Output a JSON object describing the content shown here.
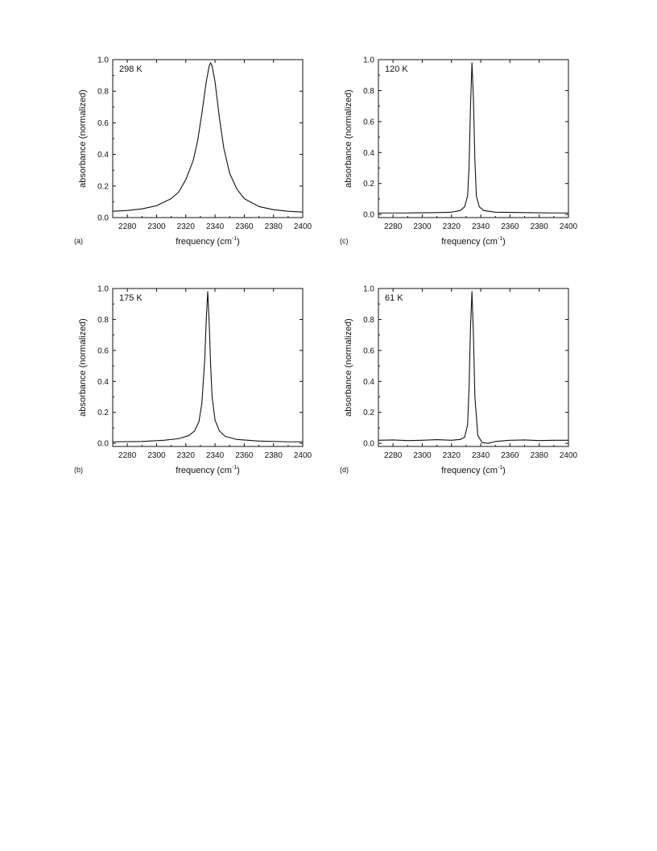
{
  "figure": {
    "panels": [
      {
        "id": "a",
        "panel_label": "(a)",
        "temperature_label": "298 K"
      },
      {
        "id": "c",
        "panel_label": "(c)",
        "temperature_label": "120 K"
      },
      {
        "id": "b",
        "panel_label": "(b)",
        "temperature_label": "175 K"
      },
      {
        "id": "d",
        "panel_label": "(d)",
        "temperature_label": "61 K"
      }
    ]
  },
  "chart_data": [
    {
      "type": "line",
      "panel": "(a)",
      "annotation": "298 K",
      "xlabel": "frequency (cm",
      "xlabel_superscript": "-1",
      "xlabel_suffix": ")",
      "ylabel": "absorbance (normalized)",
      "xlim": [
        2270,
        2400
      ],
      "ylim": [
        0,
        1.0
      ],
      "x_ticks": [
        "2280",
        "2300",
        "2320",
        "2340",
        "2360",
        "2380",
        "2400"
      ],
      "y_ticks": [
        "0.0",
        "0.2",
        "0.4",
        "0.6",
        "0.8",
        "1.0"
      ],
      "series": [
        {
          "x": [
            2270,
            2280,
            2290,
            2300,
            2310,
            2315,
            2320,
            2325,
            2328,
            2331,
            2334,
            2336,
            2337,
            2338,
            2340,
            2343,
            2346,
            2350,
            2355,
            2360,
            2370,
            2380,
            2390,
            2400
          ],
          "values": [
            0.04,
            0.045,
            0.055,
            0.075,
            0.12,
            0.16,
            0.24,
            0.36,
            0.48,
            0.66,
            0.86,
            0.96,
            0.98,
            0.96,
            0.86,
            0.63,
            0.44,
            0.28,
            0.18,
            0.12,
            0.07,
            0.05,
            0.04,
            0.035
          ]
        }
      ]
    },
    {
      "type": "line",
      "panel": "(c)",
      "annotation": "120 K",
      "xlabel": "frequency (cm",
      "xlabel_superscript": "-1",
      "xlabel_suffix": ")",
      "ylabel": "absorbance (normalized)",
      "xlim": [
        2270,
        2400
      ],
      "ylim": [
        -0.02,
        1.0
      ],
      "x_ticks": [
        "2280",
        "2300",
        "2320",
        "2340",
        "2360",
        "2380",
        "2400"
      ],
      "y_ticks": [
        "0.0",
        "0.2",
        "0.4",
        "0.6",
        "0.8",
        "1.0"
      ],
      "series": [
        {
          "x": [
            2270,
            2290,
            2310,
            2320,
            2326,
            2329,
            2331,
            2332,
            2333,
            2334,
            2335,
            2336,
            2337,
            2339,
            2342,
            2350,
            2370,
            2390,
            2400
          ],
          "values": [
            0.01,
            0.01,
            0.012,
            0.015,
            0.025,
            0.05,
            0.12,
            0.3,
            0.7,
            0.98,
            0.75,
            0.35,
            0.12,
            0.05,
            0.025,
            0.015,
            0.012,
            0.01,
            0.01
          ]
        }
      ]
    },
    {
      "type": "line",
      "panel": "(b)",
      "annotation": "175 K",
      "xlabel": "frequency (cm",
      "xlabel_superscript": "-1",
      "xlabel_suffix": ")",
      "ylabel": "absorbance (normalized)",
      "xlim": [
        2270,
        2400
      ],
      "ylim": [
        -0.02,
        1.0
      ],
      "x_ticks": [
        "2280",
        "2300",
        "2320",
        "2340",
        "2360",
        "2380",
        "2400"
      ],
      "y_ticks": [
        "0.0",
        "0.2",
        "0.4",
        "0.6",
        "0.8",
        "1.0"
      ],
      "series": [
        {
          "x": [
            2270,
            2290,
            2305,
            2315,
            2322,
            2326,
            2329,
            2331,
            2333,
            2334,
            2335,
            2336,
            2337,
            2338,
            2340,
            2343,
            2347,
            2355,
            2370,
            2390,
            2400
          ],
          "values": [
            0.01,
            0.012,
            0.02,
            0.03,
            0.05,
            0.08,
            0.14,
            0.26,
            0.55,
            0.8,
            0.98,
            0.78,
            0.5,
            0.3,
            0.15,
            0.08,
            0.045,
            0.025,
            0.015,
            0.01,
            0.01
          ]
        }
      ]
    },
    {
      "type": "line",
      "panel": "(d)",
      "annotation": "61 K",
      "xlabel": "frequency (cm",
      "xlabel_superscript": "-1",
      "xlabel_suffix": ")",
      "ylabel": "absorbance (normalized)",
      "xlim": [
        2270,
        2400
      ],
      "ylim": [
        -0.02,
        1.0
      ],
      "x_ticks": [
        "2280",
        "2300",
        "2320",
        "2340",
        "2360",
        "2380",
        "2400"
      ],
      "y_ticks": [
        "0.0",
        "0.2",
        "0.4",
        "0.6",
        "0.8",
        "1.0"
      ],
      "series": [
        {
          "x": [
            2270,
            2280,
            2290,
            2300,
            2310,
            2320,
            2326,
            2329,
            2331,
            2332,
            2333,
            2334,
            2335,
            2336,
            2338,
            2341,
            2345,
            2350,
            2360,
            2370,
            2380,
            2390,
            2400
          ],
          "values": [
            0.02,
            0.022,
            0.018,
            0.02,
            0.024,
            0.02,
            0.025,
            0.04,
            0.12,
            0.35,
            0.75,
            0.98,
            0.7,
            0.3,
            0.05,
            0.005,
            0.0,
            0.012,
            0.02,
            0.022,
            0.018,
            0.02,
            0.02
          ]
        }
      ]
    }
  ]
}
